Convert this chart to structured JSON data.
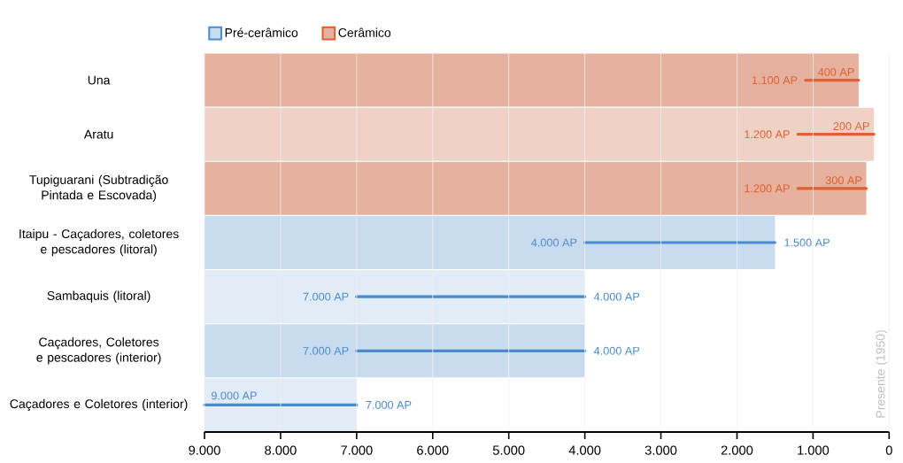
{
  "chart_data": {
    "type": "bar",
    "orientation": "horizontal",
    "categories": [
      "Una",
      "Aratu",
      "Tupiguarani (Subtradição Pintada e Escovada)",
      "Itaipu - Caçadores, coletores e pescadores (litoral)",
      "Sambaquis (litoral)",
      "Caçadores, Coletores e pescadores (interior)",
      "Caçadores e Coletores (interior)"
    ],
    "series": [
      {
        "name": "Pré-cerâmico",
        "color": "#c9dcef",
        "colors": [
          null,
          null,
          null,
          "#c9dcef",
          "#e2ecf7",
          "#c9dcef",
          "#e2ecf7"
        ],
        "base": [
          null,
          null,
          null,
          9000,
          9000,
          9000,
          9000
        ],
        "values": [
          null,
          null,
          null,
          -7500,
          -5000,
          -5000,
          -2000
        ]
      },
      {
        "name": "Cerâmico",
        "color": "#e6b19e",
        "colors": [
          "#e6b19e",
          "#efd1c6",
          "#e6b19e",
          null,
          null,
          null,
          null
        ],
        "base": [
          9000,
          9000,
          9000,
          null,
          null,
          null,
          null
        ],
        "values": [
          -8600,
          -8800,
          -8700,
          null,
          null,
          null,
          null
        ]
      },
      {
        "color": "#4a8ad0",
        "base": [
          null,
          null,
          null,
          4000,
          7000,
          7000,
          9000
        ],
        "values": [
          null,
          null,
          null,
          -2500,
          -3000,
          -3000,
          -2000
        ]
      },
      {
        "color": "#e0602f",
        "base": [
          1100,
          1200,
          1200,
          null,
          null,
          null,
          null
        ],
        "values": [
          -700,
          -1000,
          -900,
          null,
          null,
          null,
          null
        ]
      }
    ],
    "xlim": [
      9000,
      0
    ],
    "xticks": [
      {
        "value": 9000,
        "label": "9.000"
      },
      {
        "value": 8000,
        "label": "8.000"
      },
      {
        "value": 7000,
        "label": "7.000"
      },
      {
        "value": 6000,
        "label": "6.000"
      },
      {
        "value": 5000,
        "label": "5.000"
      },
      {
        "value": 4000,
        "label": "4.000"
      },
      {
        "value": 3000,
        "label": "3.000"
      },
      {
        "value": 2000,
        "label": "2.000"
      },
      {
        "value": 1000,
        "label": "1.000"
      },
      {
        "value": 0,
        "label": "0"
      }
    ],
    "grid": "x",
    "legend": "top left",
    "annotations": [
      {
        "text": "1.100 AP",
        "x": 1100,
        "y": "Una"
      },
      {
        "text": "400 AP",
        "x": 400,
        "y": "Una"
      },
      {
        "text": "1.200 AP",
        "x": 1200,
        "y": "Aratu"
      },
      {
        "text": "200 AP",
        "x": 200,
        "y": "Aratu"
      },
      {
        "text": "1.200 AP",
        "x": 1200,
        "y": "Tupiguarani (Subtradição Pintada e Escovada)"
      },
      {
        "text": "300 AP",
        "x": 300,
        "y": "Tupiguarani (Subtradição Pintada e Escovada)"
      },
      {
        "text": "4.000 AP",
        "x": 4000,
        "y": "Itaipu - Caçadores, coletores e pescadores (litoral)"
      },
      {
        "text": "1.500 AP",
        "x": 1500,
        "y": "Itaipu - Caçadores, coletores e pescadores (litoral)"
      },
      {
        "text": "7.000 AP",
        "x": 7000,
        "y": "Sambaquis (litoral)"
      },
      {
        "text": "4.000 AP",
        "x": 4000,
        "y": "Sambaquis (litoral)"
      },
      {
        "text": "7.000 AP",
        "x": 7000,
        "y": "Caçadores, Coletores e pescadores (interior)"
      },
      {
        "text": "4.000 AP",
        "x": 4000,
        "y": "Caçadores, Coletores e pescadores (interior)"
      },
      {
        "text": "9.000 AP",
        "x": 9000,
        "y": "Caçadores e Coletores (interior)"
      },
      {
        "text": "7.000 AP",
        "x": 7000,
        "y": "Caçadores e Coletores (interior)"
      },
      "Presente (1950)"
    ]
  }
}
